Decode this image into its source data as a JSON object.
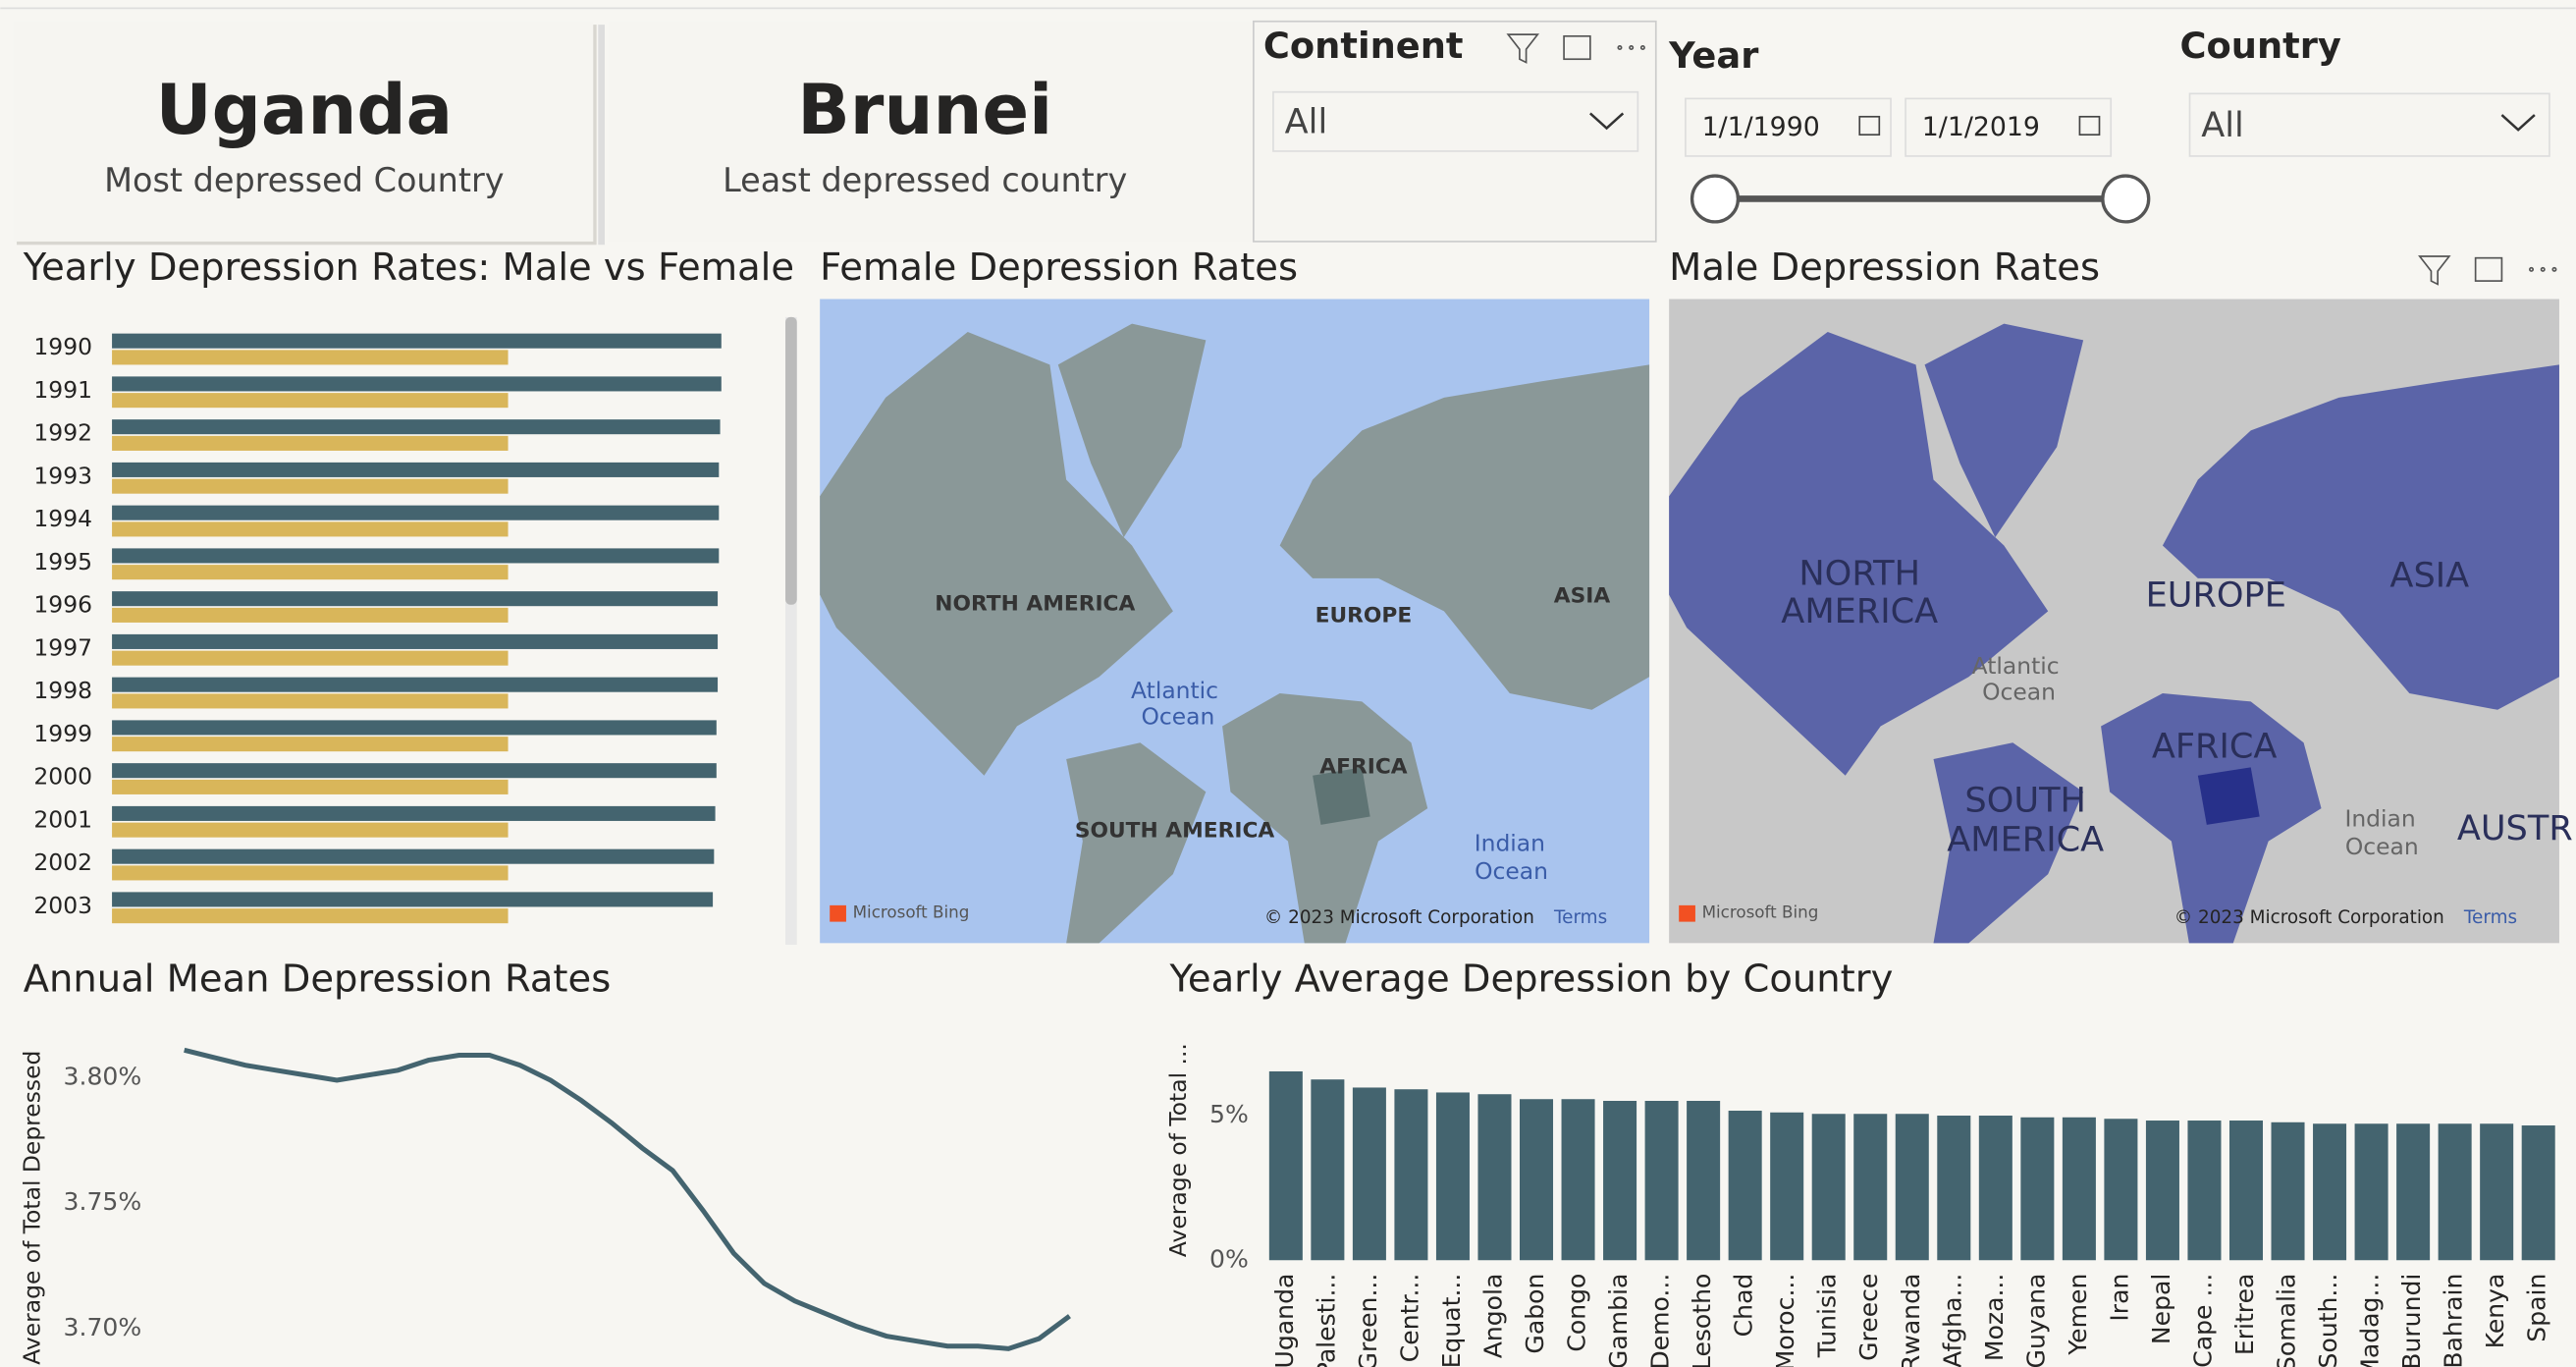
{
  "cards": [
    {
      "value": "Uganda",
      "label": "Most depressed Country"
    },
    {
      "value": "Brunei",
      "label": "Least depressed country"
    }
  ],
  "slicers": {
    "continent": {
      "title": "Continent",
      "selection": "All"
    },
    "year": {
      "title": "Year",
      "start": "1/1/1990",
      "end": "1/1/2019"
    },
    "country": {
      "title": "Country",
      "selection": "All"
    }
  },
  "maps": [
    {
      "title": "Female Depression Rates",
      "labels": [
        "NORTH AMERICA",
        "EUROPE",
        "ASIA",
        "Atlantic",
        "Ocean",
        "AFRICA",
        "SOUTH AMERICA",
        "Indian",
        "Ocean"
      ],
      "provider": "Microsoft Bing",
      "attribution": "© 2023 Microsoft Corporation",
      "terms": "Terms"
    },
    {
      "title": "Male Depression Rates",
      "labels": [
        "NORTH",
        "AMERICA",
        "EUROPE",
        "ASIA",
        "Atlantic",
        "Ocean",
        "AFRICA",
        "SOUTH",
        "AMERICA",
        "Indian",
        "Ocean",
        "AUSTR"
      ],
      "provider": "Microsoft Bing",
      "attribution": "© 2023 Microsoft Corporation",
      "terms": "Terms"
    }
  ],
  "chart_data": [
    {
      "type": "hbar",
      "title": "Yearly Depression Rates: Male vs Female",
      "categories": [
        "1990",
        "1991",
        "1992",
        "1993",
        "1994",
        "1995",
        "1996",
        "1997",
        "1998",
        "1999",
        "2000",
        "2001",
        "2002",
        "2003"
      ],
      "series": [
        {
          "color": "#44646f",
          "values": [
            5.0,
            5.0,
            4.99,
            4.98,
            4.98,
            4.98,
            4.97,
            4.97,
            4.97,
            4.96,
            4.96,
            4.95,
            4.94,
            4.93
          ]
        },
        {
          "color": "#d9b65a",
          "values": [
            3.25,
            3.25,
            3.25,
            3.25,
            3.25,
            3.25,
            3.25,
            3.25,
            3.25,
            3.25,
            3.25,
            3.25,
            3.25,
            3.25
          ]
        }
      ]
    },
    {
      "type": "line",
      "title": "Annual Mean Depression Rates",
      "ylabel": "Average of Total Depressed",
      "color": "#44646f",
      "values": [
        3.811,
        3.808,
        3.805,
        3.803,
        3.801,
        3.799,
        3.801,
        3.803,
        3.807,
        3.809,
        3.809,
        3.805,
        3.799,
        3.791,
        3.782,
        3.772,
        3.763,
        3.747,
        3.73,
        3.718,
        3.711,
        3.706,
        3.701,
        3.697,
        3.695,
        3.693,
        3.693,
        3.692,
        3.696,
        3.705
      ],
      "ylim": [
        3.686,
        3.817
      ],
      "yticks": [
        {
          "value": 3.7,
          "label": "3.70%"
        },
        {
          "value": 3.75,
          "label": "3.75%"
        },
        {
          "value": 3.8,
          "label": "3.80%"
        }
      ],
      "grid": false
    },
    {
      "type": "bar",
      "title": "Yearly Average Depression by Country",
      "ylabel": "Average of Total ...",
      "color": "#44646f",
      "categories": [
        "Uganda",
        "Palesti...",
        "Green...",
        "Centr...",
        "Equat...",
        "Angola",
        "Gabon",
        "Congo",
        "Gambia",
        "Demo...",
        "Lesotho",
        "Chad",
        "Moroc...",
        "Tunisia",
        "Greece",
        "Rwanda",
        "Afgha...",
        "Moza...",
        "Guyana",
        "Yemen",
        "Iran",
        "Nepal",
        "Cape ...",
        "Eritrea",
        "Somalia",
        "South...",
        "Madag...",
        "Burundi",
        "Bahrain",
        "Kenya",
        "Spain"
      ],
      "values": [
        6.53,
        6.25,
        5.97,
        5.91,
        5.8,
        5.74,
        5.57,
        5.57,
        5.51,
        5.51,
        5.51,
        5.17,
        5.11,
        5.06,
        5.06,
        5.06,
        5.0,
        5.0,
        4.94,
        4.94,
        4.89,
        4.83,
        4.83,
        4.83,
        4.77,
        4.72,
        4.72,
        4.72,
        4.72,
        4.72,
        4.66
      ],
      "ylim": [
        0,
        7.5
      ],
      "yticks": [
        {
          "value": 0,
          "label": "0%"
        },
        {
          "value": 5,
          "label": "5%"
        }
      ],
      "grid": false
    }
  ]
}
